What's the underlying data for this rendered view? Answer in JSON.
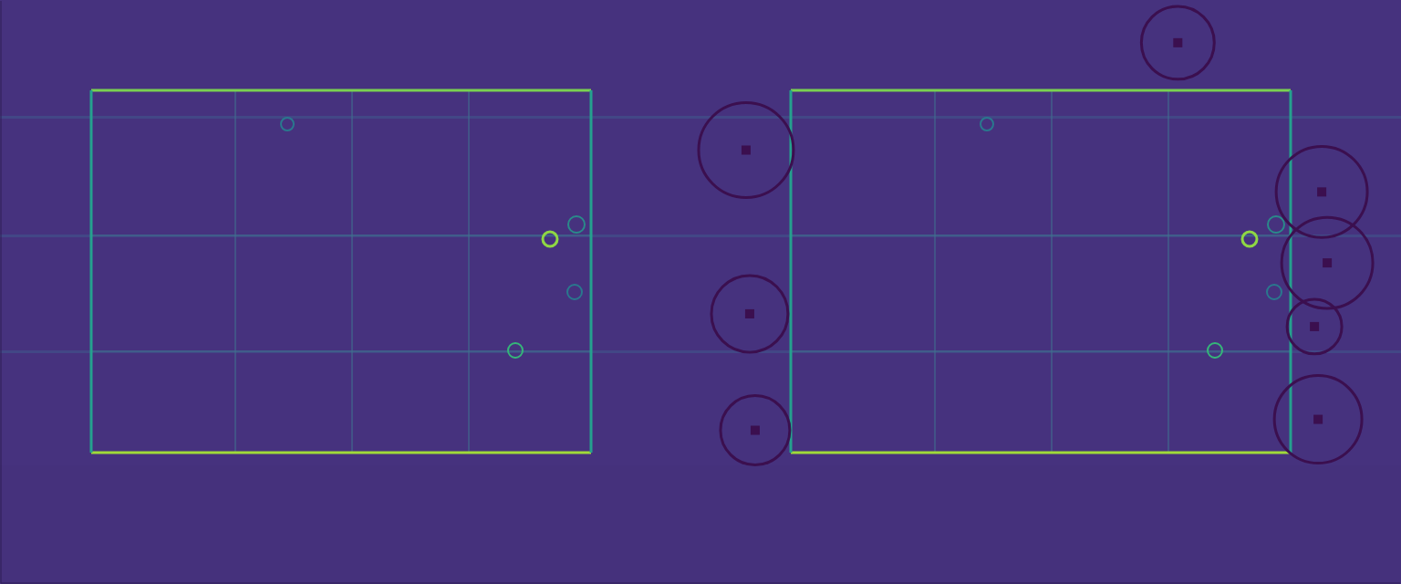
{
  "chart_data": {
    "type": "scatter",
    "x": [
      818,
      822,
      828,
      1292,
      1450,
      1456,
      1442,
      1446
    ],
    "y": [
      164,
      344,
      472,
      46,
      210,
      288,
      358,
      460
    ],
    "sizes": [
      52,
      42,
      38,
      40,
      50,
      50,
      30,
      48
    ],
    "xlim": [
      0,
      1536
    ],
    "ylim": [
      0,
      640
    ],
    "tick_labels": false,
    "grid": false,
    "color": "#3b0f4f",
    "marker": "square"
  }
}
